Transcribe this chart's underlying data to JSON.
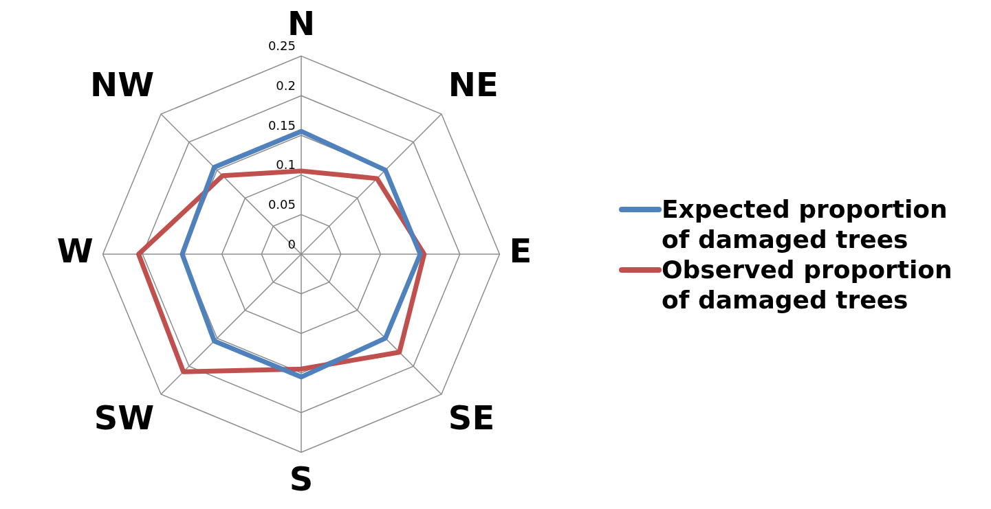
{
  "chart_data": {
    "type": "radar",
    "categories": [
      "N",
      "NE",
      "E",
      "SE",
      "S",
      "SW",
      "W",
      "NW"
    ],
    "series": [
      {
        "name": "Expected proportion of damaged trees",
        "color": "#4f81bd",
        "values": [
          0.155,
          0.15,
          0.15,
          0.15,
          0.155,
          0.155,
          0.15,
          0.155
        ]
      },
      {
        "name": "Observed proportion of damaged trees",
        "color": "#c0504d",
        "values": [
          0.105,
          0.135,
          0.155,
          0.175,
          0.145,
          0.21,
          0.205,
          0.14
        ]
      }
    ],
    "ylim": [
      0,
      0.25
    ],
    "yticks": [
      0,
      0.05,
      0.1,
      0.15,
      0.2,
      0.25
    ],
    "grid": true,
    "legend": "right",
    "marker": "none",
    "line_style": "solid"
  }
}
